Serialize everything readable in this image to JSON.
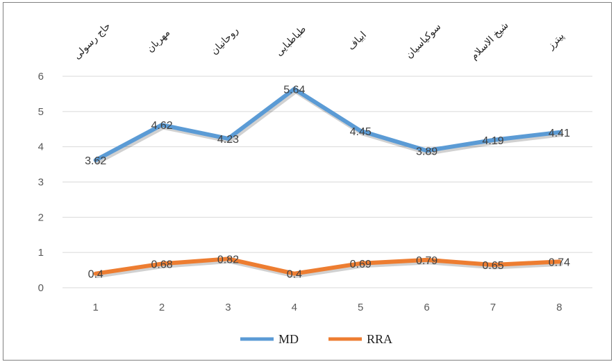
{
  "chart_data": {
    "type": "line",
    "x": [
      1,
      2,
      3,
      4,
      5,
      6,
      7,
      8
    ],
    "category_labels": [
      "حاج رسولی",
      "مهربان",
      "روحانیان",
      "طباطبایی",
      "ابیاف",
      "سوکیاسیان",
      "شیخ الاسلام",
      "پیترز"
    ],
    "ylim": [
      0,
      6
    ],
    "yticks": [
      0,
      1,
      2,
      3,
      4,
      5,
      6
    ],
    "grid": true,
    "legend": "bottom",
    "series": [
      {
        "name": "MD",
        "color": "#5b9bd5",
        "values": [
          3.62,
          4.62,
          4.23,
          5.64,
          4.45,
          3.89,
          4.19,
          4.41
        ],
        "labels": [
          "3.62",
          "4.62",
          "4.23",
          "5.64",
          "4.45",
          "3.89",
          "4.19",
          "4.41"
        ]
      },
      {
        "name": "RRA",
        "color": "#ed7d31",
        "values": [
          0.4,
          0.68,
          0.82,
          0.4,
          0.69,
          0.79,
          0.65,
          0.74
        ],
        "labels": [
          "0.4",
          "0.68",
          "0.82",
          "0.4",
          "0.69",
          "0.79",
          "0.65",
          "0.74"
        ]
      }
    ]
  }
}
